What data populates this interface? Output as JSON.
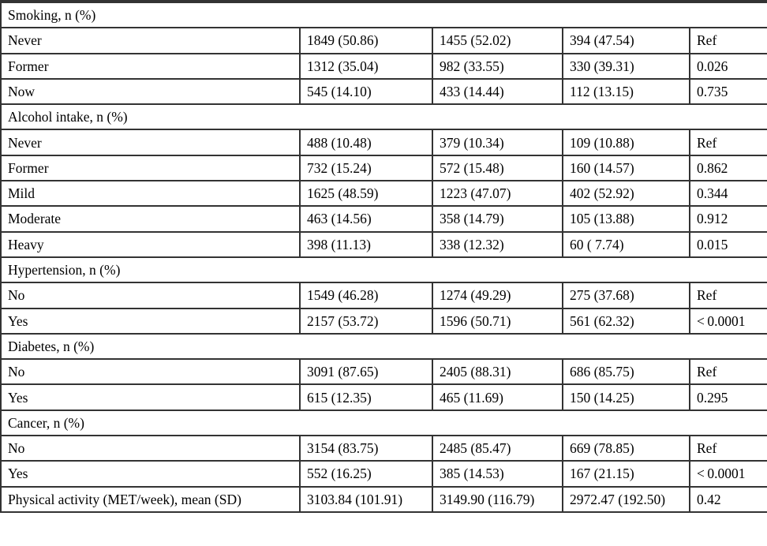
{
  "colors": {
    "background": "#ffffff",
    "text": "#000000",
    "border": "#333333"
  },
  "table": {
    "rows": [
      {
        "type": "section",
        "label": "Smoking, n (%)"
      },
      {
        "type": "data",
        "label": "Never",
        "values": [
          "1849 (50.86)",
          "1455 (52.02)",
          "394 (47.54)",
          "Ref"
        ]
      },
      {
        "type": "data",
        "label": "Former",
        "values": [
          "1312 (35.04)",
          "982 (33.55)",
          "330 (39.31)",
          "0.026"
        ]
      },
      {
        "type": "data",
        "label": "Now",
        "values": [
          "545 (14.10)",
          "433 (14.44)",
          "112 (13.15)",
          "0.735"
        ]
      },
      {
        "type": "section",
        "label": "Alcohol intake, n (%)"
      },
      {
        "type": "data",
        "label": "Never",
        "values": [
          "488 (10.48)",
          "379 (10.34)",
          "109 (10.88)",
          "Ref"
        ]
      },
      {
        "type": "data",
        "label": "Former",
        "values": [
          "732 (15.24)",
          "572 (15.48)",
          "160 (14.57)",
          "0.862"
        ]
      },
      {
        "type": "data",
        "label": "Mild",
        "values": [
          "1625 (48.59)",
          "1223 (47.07)",
          "402 (52.92)",
          "0.344"
        ]
      },
      {
        "type": "data",
        "label": "Moderate",
        "values": [
          "463 (14.56)",
          "358 (14.79)",
          "105 (13.88)",
          "0.912"
        ]
      },
      {
        "type": "data",
        "label": "Heavy",
        "values": [
          "398 (11.13)",
          "338 (12.32)",
          "60 ( 7.74)",
          "0.015"
        ]
      },
      {
        "type": "section",
        "label": "Hypertension, n (%)"
      },
      {
        "type": "data",
        "label": "No",
        "values": [
          "1549 (46.28)",
          "1274 (49.29)",
          "275 (37.68)",
          "Ref"
        ]
      },
      {
        "type": "data",
        "label": "Yes",
        "values": [
          "2157 (53.72)",
          "1596 (50.71)",
          "561 (62.32)",
          "< 0.0001"
        ]
      },
      {
        "type": "section",
        "label": "Diabetes, n (%)"
      },
      {
        "type": "data",
        "label": "No",
        "values": [
          "3091 (87.65)",
          "2405 (88.31)",
          "686 (85.75)",
          "Ref"
        ]
      },
      {
        "type": "data",
        "label": "Yes",
        "values": [
          "615 (12.35)",
          "465 (11.69)",
          "150 (14.25)",
          "0.295"
        ]
      },
      {
        "type": "section",
        "label": "Cancer, n (%)"
      },
      {
        "type": "data",
        "label": "No",
        "values": [
          "3154 (83.75)",
          "2485 (85.47)",
          "669 (78.85)",
          "Ref"
        ]
      },
      {
        "type": "data",
        "label": "Yes",
        "values": [
          "552 (16.25)",
          "385 (14.53)",
          "167 (21.15)",
          "< 0.0001"
        ]
      },
      {
        "type": "data",
        "label": "Physical activity (MET/week), mean (SD)",
        "indent": false,
        "values": [
          "3103.84 (101.91)",
          "3149.90 (116.79)",
          "2972.47 (192.50)",
          "0.42"
        ]
      }
    ]
  }
}
